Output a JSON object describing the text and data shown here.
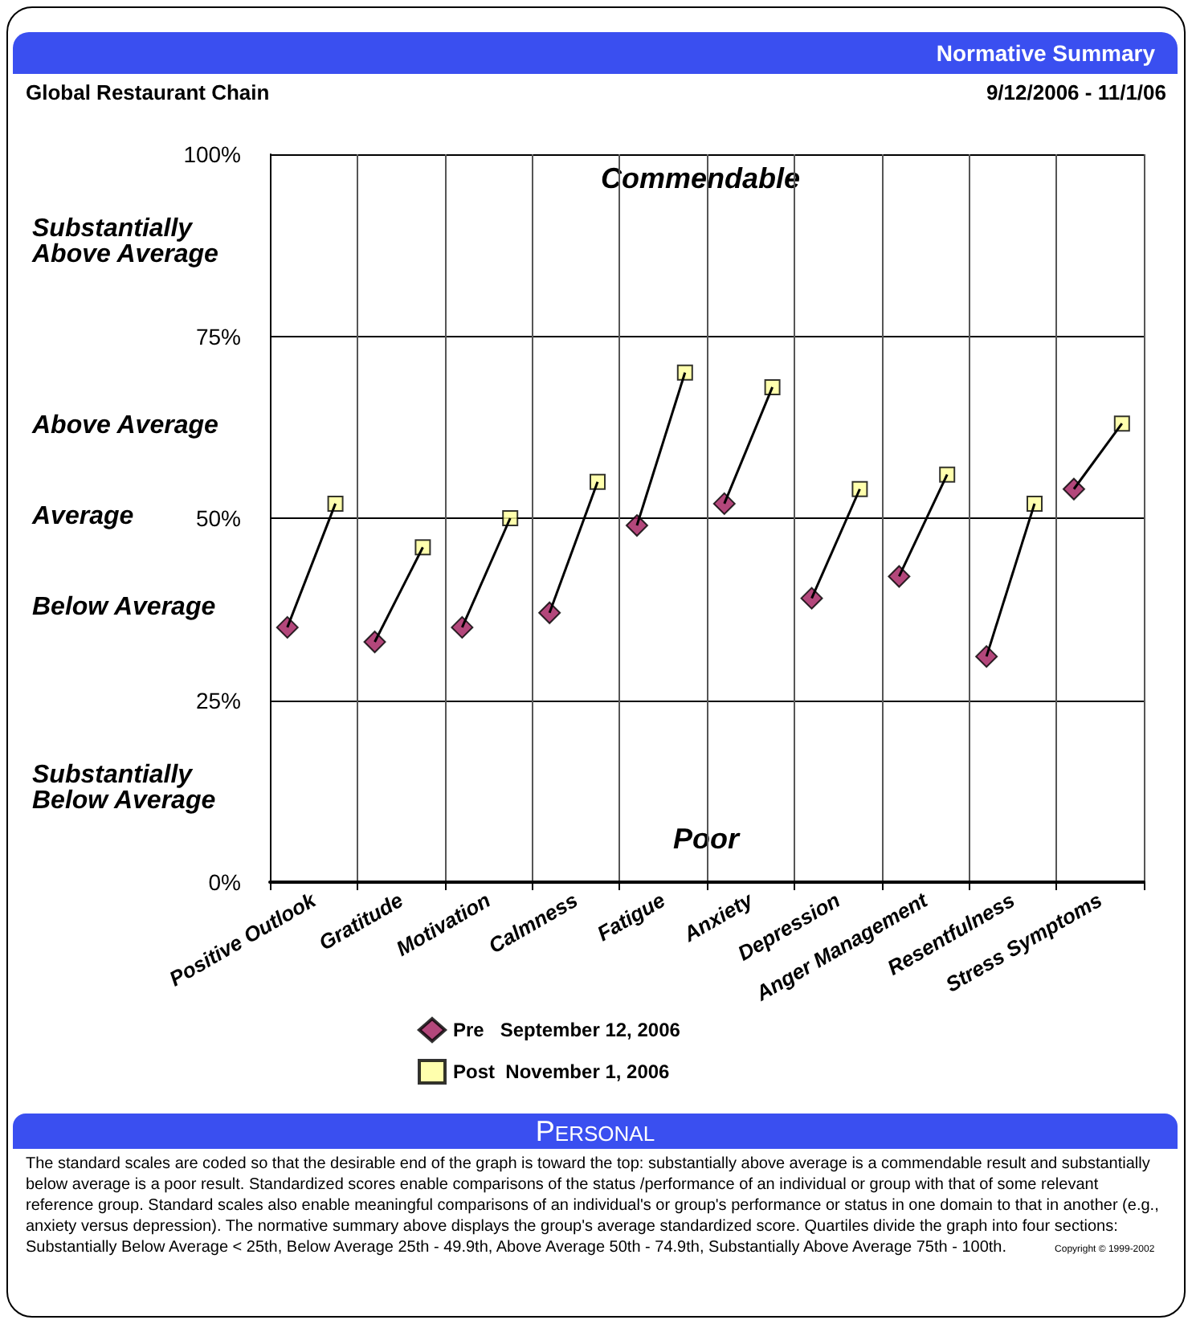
{
  "chart_data": {
    "type": "scatter",
    "title": "Normative Summary",
    "subtitle": "Global Restaurant Chain",
    "annotations": [
      "9/12/2006 - 11/1/06",
      "Commendable",
      "Poor",
      "Substantially Above Average",
      "Above Average",
      "Average",
      "Below Average",
      "Substantially Below Average",
      "Personal",
      "The standard scales are coded so that the desirable end of the graph is toward the top: substantially above average is a commendable result and substantially below average is a poor result.  Standardized scores enable comparisons of the status /performance of an individual or group with that of some relevant reference group. Standard scales also enable meaningful comparisons of an individual's or group's performance or status in one domain to that in another (e.g., anxiety versus depression).  The normative summary above displays the group's average standardized score. Quartiles divide the graph into four sections: Substantially Below Average < 25th, Below Average 25th - 49.9th, Above Average 50th - 74.9th, Substantially Above Average 75th - 100th.",
      "Copyright © 1999-2002"
    ],
    "categories": [
      "Positive Outlook",
      "Gratitude",
      "Motivation",
      "Calmness",
      "Fatigue",
      "Anxiety",
      "Depression",
      "Anger Management",
      "Resentfulness",
      "Stress Symptoms"
    ],
    "series": [
      {
        "name": "Pre   September 12, 2006",
        "color": "#a0195a",
        "marker": "diamond",
        "values": [
          35,
          33,
          35,
          37,
          49,
          52,
          39,
          42,
          31,
          54
        ]
      },
      {
        "name": "Post  November 1, 2006",
        "color": "#ffff99",
        "marker": "square",
        "values": [
          52,
          46,
          50,
          55,
          70,
          68,
          54,
          56,
          52,
          63
        ]
      }
    ],
    "ylim": [
      0,
      100
    ],
    "yticks": [
      {
        "value": 0,
        "label": "0%"
      },
      {
        "value": 25,
        "label": "25%"
      },
      {
        "value": 50,
        "label": "50%"
      },
      {
        "value": 75,
        "label": "75%"
      },
      {
        "value": 100,
        "label": "100%"
      }
    ],
    "grid": true,
    "legend": "bottom"
  }
}
